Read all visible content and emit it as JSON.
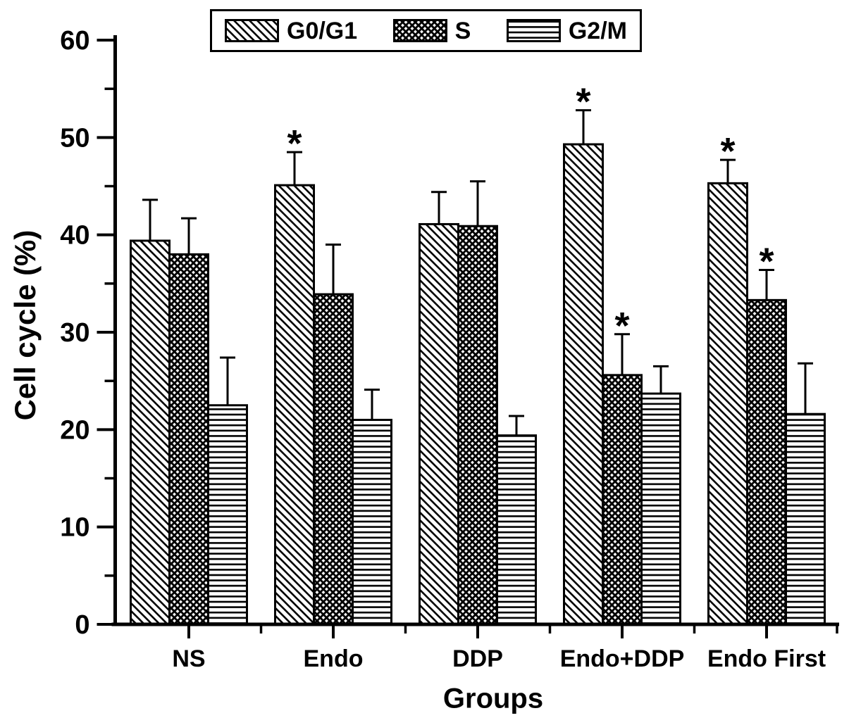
{
  "figure": {
    "background": "#ffffff",
    "ink_color": "#000000"
  },
  "legend": {
    "position": "top-center",
    "border": true
  },
  "chart_data": {
    "type": "bar",
    "title": "",
    "xlabel": "Groups",
    "ylabel": "Cell cycle (%)",
    "ylim": [
      0,
      60
    ],
    "yticks": [
      0,
      10,
      20,
      30,
      40,
      50,
      60
    ],
    "yminor_step": 5,
    "grid": false,
    "legend_position": "top-center",
    "error_bars": "upper",
    "sig_symbol": "*",
    "categories": [
      "NS",
      "Endo",
      "DDP",
      "Endo+DDP",
      "Endo First"
    ],
    "series": [
      {
        "name": "G0/G1",
        "pattern": "diagonal",
        "values": [
          39.4,
          45.1,
          41.1,
          49.3,
          45.3
        ],
        "errors": [
          4.2,
          3.4,
          3.3,
          3.5,
          2.4
        ],
        "significant": [
          false,
          true,
          false,
          true,
          true
        ]
      },
      {
        "name": "S",
        "pattern": "crosshatch",
        "values": [
          38.0,
          33.9,
          40.9,
          25.6,
          33.3
        ],
        "errors": [
          3.7,
          5.1,
          4.6,
          4.2,
          3.1
        ],
        "significant": [
          false,
          false,
          false,
          true,
          true
        ]
      },
      {
        "name": "G2/M",
        "pattern": "horizontal",
        "values": [
          22.5,
          21.0,
          19.4,
          23.7,
          21.6
        ],
        "errors": [
          4.9,
          3.1,
          2.0,
          2.8,
          5.2
        ],
        "significant": [
          false,
          false,
          false,
          false,
          false
        ]
      }
    ]
  }
}
